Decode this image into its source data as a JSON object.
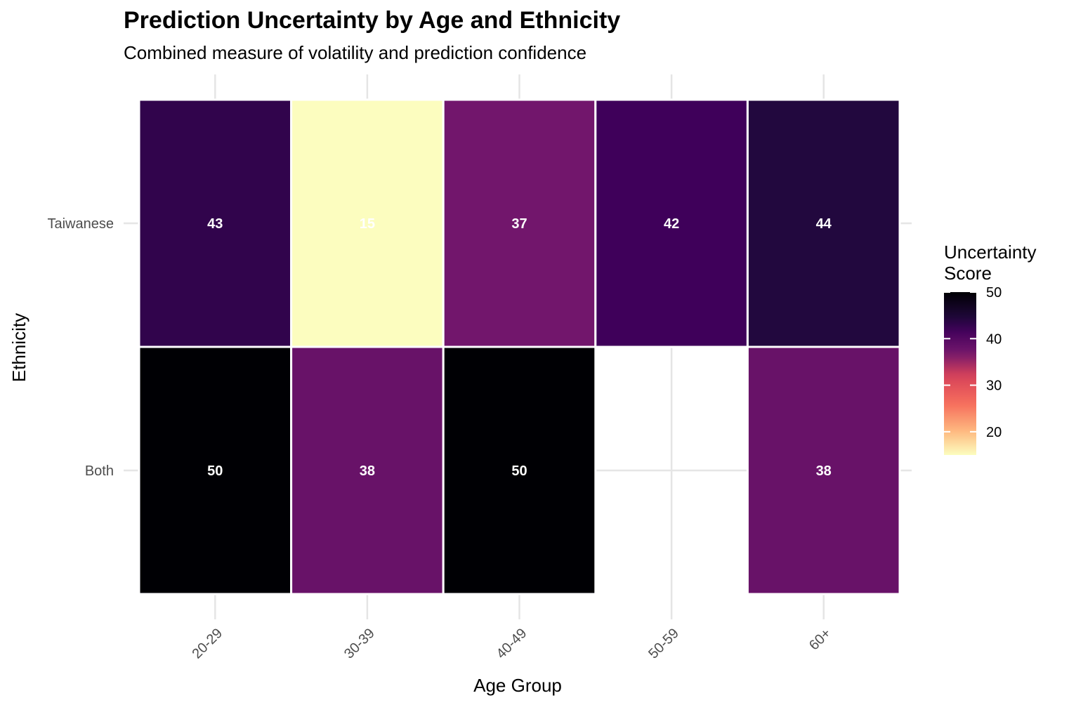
{
  "chart_data": {
    "type": "heatmap",
    "title": "Prediction Uncertainty by Age and Ethnicity",
    "subtitle": "Combined measure of volatility and prediction confidence",
    "xlabel": "Age Group",
    "ylabel": "Ethnicity",
    "x_categories": [
      "20-29",
      "30-39",
      "40-49",
      "50-59",
      "60+"
    ],
    "y_categories": [
      "Taiwanese",
      "Both"
    ],
    "cells": [
      {
        "x": "20-29",
        "y": "Taiwanese",
        "value": 43
      },
      {
        "x": "30-39",
        "y": "Taiwanese",
        "value": 15
      },
      {
        "x": "40-49",
        "y": "Taiwanese",
        "value": 37
      },
      {
        "x": "50-59",
        "y": "Taiwanese",
        "value": 42
      },
      {
        "x": "60+",
        "y": "Taiwanese",
        "value": 44
      },
      {
        "x": "20-29",
        "y": "Both",
        "value": 50
      },
      {
        "x": "30-39",
        "y": "Both",
        "value": 38
      },
      {
        "x": "40-49",
        "y": "Both",
        "value": 50
      },
      {
        "x": "60+",
        "y": "Both",
        "value": 38
      }
    ],
    "legend": {
      "title_lines": [
        "Uncertainty",
        "Score"
      ],
      "ticks": [
        50,
        40,
        30,
        20
      ],
      "range": [
        15,
        50
      ],
      "colormap": "magma (inverted)",
      "position": "right"
    },
    "grid": true
  }
}
